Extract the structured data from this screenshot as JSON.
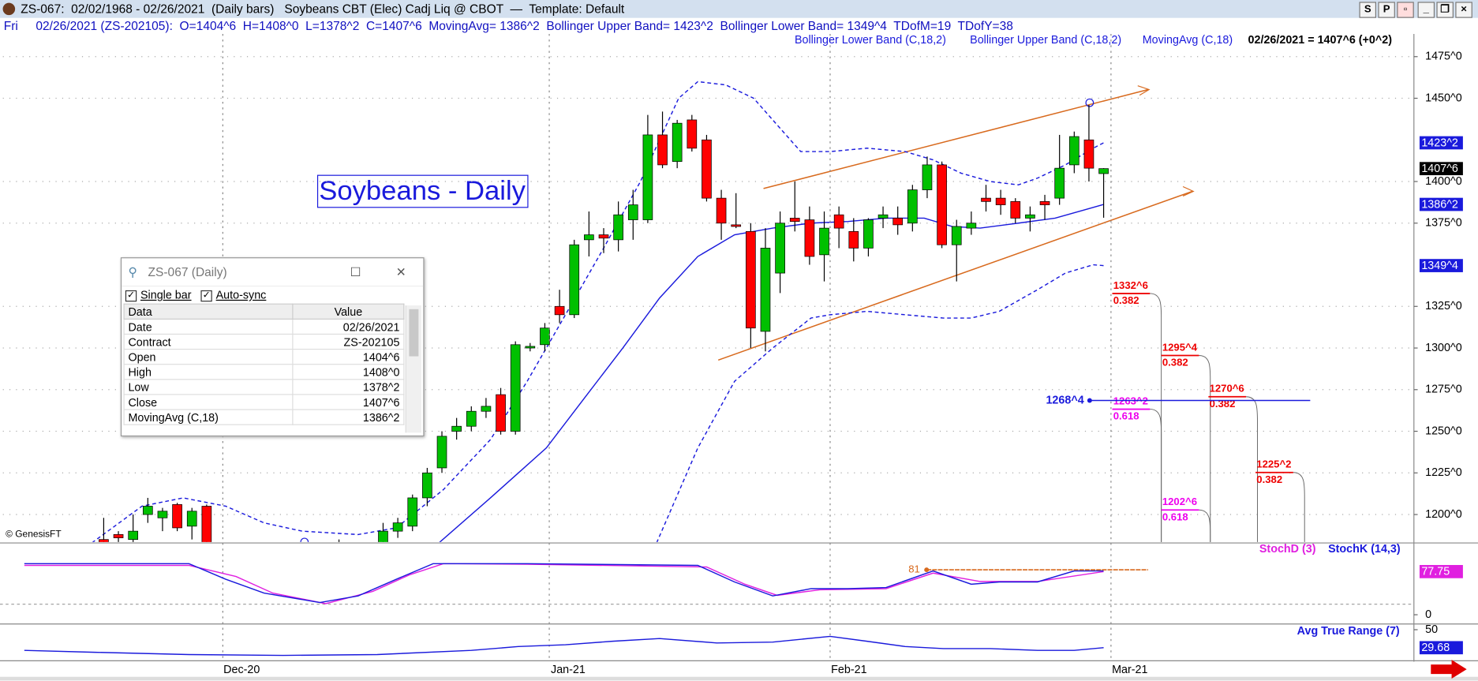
{
  "window": {
    "title": "ZS-067:  02/02/1968 - 02/26/2021  (Daily bars)   Soybeans CBT (Elec) Cadj Liq @ CBOT  —  Template: Default",
    "buttons": [
      "S",
      "P"
    ]
  },
  "info_bar": {
    "day": "Fri",
    "text": "02/26/2021 (ZS-202105):  O=1404^6  H=1408^0  L=1378^2  C=1407^6  MovingAvg= 1386^2  Bollinger Upper Band= 1423^2  Bollinger Lower Band= 1349^4  TDofM=19  TDofY=38"
  },
  "watermark": "© GenesisFT",
  "chart_data": [
    {
      "type": "candlestick",
      "title": "Soybeans - Daily",
      "status": "02/26/2021 = 1407^6 (+0^2)",
      "xlim": [
        -6.86,
        89.1
      ],
      "xticks": [
        {
          "value": 8.1,
          "label": "Dec-20"
        },
        {
          "value": 30.3,
          "label": "Jan-21"
        },
        {
          "value": 49.4,
          "label": "Feb-21"
        },
        {
          "value": 68.5,
          "label": "Mar-21"
        }
      ],
      "ylim": [
        1183.5,
        1487.5
      ],
      "yticks": [
        {
          "value": 1475,
          "label": "1475^0"
        },
        {
          "value": 1450,
          "label": "1450^0"
        },
        {
          "value": 1400,
          "label": "1400^0"
        },
        {
          "value": 1375,
          "label": "1375^0"
        },
        {
          "value": 1325,
          "label": "1325^0"
        },
        {
          "value": 1300,
          "label": "1300^0"
        },
        {
          "value": 1275,
          "label": "1275^0"
        },
        {
          "value": 1250,
          "label": "1250^0"
        },
        {
          "value": 1225,
          "label": "1225^0"
        },
        {
          "value": 1200,
          "label": "1200^0"
        }
      ],
      "grid": true,
      "candles": {
        "up_color": "#00c000",
        "down_color": "#ff0000",
        "x": [
          0,
          1,
          2,
          3,
          4,
          5,
          6,
          7,
          16,
          19,
          20,
          21,
          22,
          23,
          24,
          25,
          26,
          27,
          28,
          29,
          30,
          31,
          32,
          33,
          34,
          35,
          36,
          37,
          38,
          39,
          40,
          41,
          42,
          43,
          44,
          45,
          46,
          47,
          48,
          49,
          50,
          51,
          52,
          53,
          54,
          55,
          56,
          57,
          58,
          59,
          60,
          61,
          62,
          63,
          64,
          65,
          66,
          67,
          68
        ],
        "open": [
          1185,
          1188,
          1185,
          1200,
          1198,
          1206,
          1193,
          1205,
          1180,
          1178,
          1190,
          1193,
          1210,
          1228,
          1250,
          1253,
          1262,
          1272,
          1250,
          1300,
          1302,
          1325,
          1320,
          1365,
          1368,
          1365,
          1377,
          1377,
          1428,
          1412,
          1437,
          1425,
          1390,
          1374,
          1370,
          1310,
          1345,
          1378,
          1377,
          1356,
          1380,
          1370,
          1360,
          1378,
          1378,
          1375,
          1395,
          1410,
          1362,
          1372,
          1390,
          1390,
          1388,
          1378,
          1388,
          1390,
          1410,
          1425,
          1404.75
        ],
        "high": [
          1198,
          1190,
          1200,
          1210,
          1204,
          1207,
          1204,
          1206,
          1185,
          1195,
          1198,
          1212,
          1228,
          1250,
          1258,
          1265,
          1270,
          1276,
          1304,
          1303,
          1315,
          1335,
          1365,
          1382,
          1372,
          1388,
          1395,
          1440,
          1442,
          1437,
          1440,
          1428,
          1395,
          1393,
          1375,
          1372,
          1382,
          1400,
          1385,
          1382,
          1385,
          1378,
          1378,
          1385,
          1385,
          1398,
          1415,
          1412,
          1377,
          1382,
          1398,
          1395,
          1390,
          1385,
          1392,
          1428,
          1430,
          1446,
          1408
        ],
        "low": [
          1175,
          1178,
          1180,
          1195,
          1190,
          1190,
          1185,
          1180,
          1175,
          1175,
          1186,
          1190,
          1205,
          1225,
          1245,
          1250,
          1258,
          1248,
          1248,
          1298,
          1298,
          1315,
          1318,
          1355,
          1357,
          1358,
          1365,
          1375,
          1408,
          1408,
          1418,
          1388,
          1365,
          1372,
          1300,
          1298,
          1333,
          1370,
          1350,
          1340,
          1360,
          1352,
          1355,
          1372,
          1368,
          1370,
          1390,
          1360,
          1340,
          1368,
          1382,
          1380,
          1375,
          1370,
          1377,
          1386,
          1405,
          1400,
          1378.25
        ],
        "close": [
          1180,
          1186,
          1190,
          1205,
          1202,
          1192,
          1202,
          1183,
          1178,
          1190,
          1195,
          1210,
          1225,
          1247,
          1253,
          1262,
          1265,
          1250,
          1302,
          1301,
          1312,
          1320,
          1362,
          1368,
          1366,
          1380,
          1386,
          1428,
          1410,
          1435,
          1420,
          1390,
          1375,
          1373,
          1312,
          1360,
          1375,
          1376,
          1355,
          1372,
          1372,
          1360,
          1377,
          1380,
          1374,
          1395,
          1410,
          1362,
          1373,
          1375,
          1388,
          1386,
          1378,
          1380,
          1386,
          1408,
          1427,
          1408,
          1407.75
        ]
      },
      "lines": [
        {
          "name": "Bollinger Lower Band (C,18,2)",
          "color": "#1a1adc",
          "dashed": true,
          "x": [
            37.6,
            40.4,
            42.9,
            45.5,
            48.1,
            49.4,
            51.9,
            54.5,
            57.1,
            59.0,
            60.9,
            63.5,
            65.4,
            67.3,
            68
          ],
          "values": [
            1183,
            1240,
            1280,
            1300,
            1318,
            1320,
            1322,
            1320,
            1318,
            1318,
            1322,
            1335,
            1345,
            1350,
            1349.5
          ]
        },
        {
          "name": "Bollinger Upper Band (C,18,2)",
          "color": "#1a1adc",
          "dashed": true,
          "x": [
            -0.8,
            2.6,
            5.4,
            8.3,
            10.9,
            13.5,
            17.3,
            19.9,
            23.1,
            26.3,
            28.8,
            31.4,
            34.0,
            36.5,
            39.1,
            40.4,
            42.3,
            44.2,
            46.2,
            47.4,
            49.4,
            51.9,
            54.5,
            56.4,
            58.3,
            60.3,
            62.2,
            63.5,
            65.4,
            67.3,
            68
          ],
          "values": [
            1183,
            1205,
            1210,
            1205,
            1195,
            1190,
            1188,
            1192,
            1215,
            1245,
            1280,
            1320,
            1360,
            1400,
            1450,
            1460,
            1458,
            1450,
            1430,
            1418,
            1418,
            1420,
            1418,
            1413,
            1405,
            1400,
            1398,
            1402,
            1410,
            1420,
            1423.25
          ]
        },
        {
          "name": "MovingAvg (C,18)",
          "color": "#1a1adc",
          "dashed": false,
          "x": [
            22.8,
            26.3,
            30.1,
            32.7,
            35.3,
            37.8,
            40.4,
            42.9,
            45.5,
            48.1,
            50.6,
            53.2,
            55.8,
            57.7,
            59.6,
            62.2,
            64.7,
            66.7,
            68
          ],
          "values": [
            1183,
            1210,
            1240,
            1270,
            1300,
            1330,
            1355,
            1368,
            1372,
            1375,
            1376,
            1378,
            1378,
            1373,
            1372,
            1375,
            1378,
            1383,
            1386.25
          ]
        }
      ],
      "price_labels": [
        {
          "value": 1423.25,
          "label": "1423^2",
          "color": "#1a1adc"
        },
        {
          "value": 1407.75,
          "label": "1407^6",
          "color": "#000000"
        },
        {
          "value": 1386.25,
          "label": "1386^2",
          "color": "#1a1adc"
        },
        {
          "value": 1349.5,
          "label": "1349^4",
          "color": "#1a1adc"
        }
      ],
      "fib_levels": [
        {
          "value": 1332.75,
          "label": "1332^6",
          "ratio": 0.382,
          "color": "#ee0000"
        },
        {
          "value": 1295.5,
          "label": "1295^4",
          "ratio": 0.382,
          "color": "#ee0000"
        },
        {
          "value": 1270.75,
          "label": "1270^6",
          "ratio": 0.382,
          "color": "#ee0000"
        },
        {
          "value": 1225.25,
          "label": "1225^2",
          "ratio": 0.382,
          "color": "#ee0000"
        },
        {
          "value": 1263.25,
          "label": "1263^2",
          "ratio": 0.618,
          "color": "#ee00ee"
        },
        {
          "value": 1202.75,
          "label": "1202^6",
          "ratio": 0.618,
          "color": "#ee00ee"
        }
      ],
      "level": {
        "value": 1268.5,
        "label": "1268^4",
        "color": "#1a1adc"
      }
    },
    {
      "type": "line",
      "xlim": [
        -6.86,
        89.1
      ],
      "ylim": [
        -15,
        126
      ],
      "yticks": [
        0
      ],
      "series": [
        {
          "name": "StochD (3)",
          "color": "#e020e0",
          "x": [
            -5.4,
            5.8,
            9.0,
            11.5,
            15.1,
            18.3,
            20.8,
            23.1,
            28.8,
            41.0,
            43.6,
            45.8,
            48.7,
            53.2,
            56.4,
            59.6,
            63.5,
            68
          ],
          "values": [
            89,
            89,
            69,
            39,
            20,
            42,
            72,
            92,
            91,
            86,
            55,
            35,
            45,
            47,
            75,
            60,
            60,
            77.75
          ]
        },
        {
          "name": "StochK (14,3)",
          "color": "#1a1adc",
          "x": [
            -5.4,
            5.8,
            8.3,
            10.9,
            14.7,
            17.3,
            19.9,
            22.4,
            28.8,
            40.4,
            42.9,
            45.5,
            48.1,
            50.6,
            53.2,
            56.4,
            59.0,
            60.9,
            63.5,
            66.0,
            68
          ],
          "values": [
            92,
            92,
            64,
            39,
            22,
            34,
            64,
            92,
            92,
            89,
            59,
            34,
            47,
            47,
            49,
            79,
            55,
            59,
            59,
            79,
            79
          ]
        }
      ],
      "level": 81,
      "level_color": "#d86a1e",
      "price_labels": [
        {
          "value": 77.75,
          "color": "#e020e0"
        }
      ]
    },
    {
      "type": "line",
      "xlim": [
        -6.86,
        89.1
      ],
      "ylim": [
        16,
        54.3
      ],
      "yticks": [
        50
      ],
      "series": [
        {
          "name": "Avg True Range (7)",
          "color": "#1a1adc",
          "x": [
            -5.4,
            -0.6,
            5.8,
            12.2,
            18.6,
            25.0,
            28.2,
            31.4,
            34.6,
            37.8,
            41.7,
            45.5,
            49.4,
            51.9,
            54.5,
            57.1,
            60.3,
            63.5,
            66.0,
            68
          ],
          "values": [
            26.6,
            24.5,
            22,
            21,
            22,
            26.6,
            31,
            33,
            37,
            40,
            35,
            36,
            42.5,
            37,
            31,
            28.7,
            28.7,
            26.6,
            26.6,
            29.68
          ]
        }
      ],
      "price_labels": [
        {
          "value": 29.68,
          "color": "#1a1adc"
        }
      ]
    }
  ],
  "data_window": {
    "title": "ZS-067 (Daily)",
    "options": [
      "Single bar",
      "Auto-sync"
    ],
    "columns": [
      "Data",
      "Value"
    ],
    "rows": [
      [
        "Date",
        "02/26/2021"
      ],
      [
        "Contract",
        "ZS-202105"
      ],
      [
        "Open",
        "1404^6"
      ],
      [
        "High",
        "1408^0"
      ],
      [
        "Low",
        "1378^2"
      ],
      [
        "Close",
        "1407^6"
      ],
      [
        "MovingAvg (C,18)",
        "1386^2"
      ]
    ]
  }
}
